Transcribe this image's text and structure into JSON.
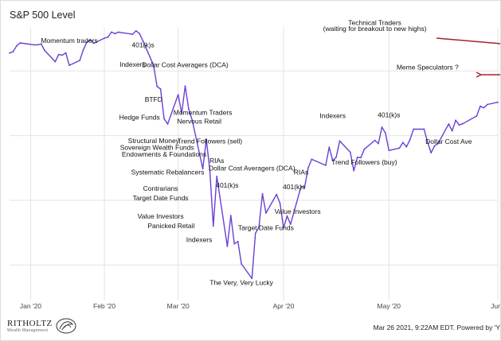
{
  "header": {
    "title": "S&P 500 Level"
  },
  "footer": {
    "logo_text": "RITHOLTZ",
    "logo_sub": "Wealth Management",
    "timestamp": "Mar 26 2021, 9:22AM EDT.  Powered by 'Y"
  },
  "colors": {
    "line": "#6b3fd4",
    "arrow": "#a3222e",
    "grid": "#e3e3e3"
  },
  "chart_data": {
    "type": "line",
    "title": "S&P 500 Level",
    "grid": true,
    "x_start": "2020-01-14",
    "x_end": "2020-06-01",
    "x_ticks": [
      {
        "label": "Jan '20",
        "date": "2020-01-20"
      },
      {
        "label": "Feb '20",
        "date": "2020-02-10"
      },
      {
        "label": "Mar '20",
        "date": "2020-03-02"
      },
      {
        "label": "Apr '20",
        "date": "2020-04-01"
      },
      {
        "label": "May '20",
        "date": "2020-05-01"
      },
      {
        "label": "Jun '",
        "date": "2020-06-01"
      }
    ],
    "ylim": [
      2150,
      3400
    ],
    "series": [
      {
        "values": [
          [
            "2020-01-14",
            3283
          ],
          [
            "2020-01-15",
            3289
          ],
          [
            "2020-01-16",
            3316
          ],
          [
            "2020-01-17",
            3330
          ],
          [
            "2020-01-21",
            3321
          ],
          [
            "2020-01-22",
            3321
          ],
          [
            "2020-01-23",
            3325
          ],
          [
            "2020-01-24",
            3295
          ],
          [
            "2020-01-27",
            3243
          ],
          [
            "2020-01-28",
            3276
          ],
          [
            "2020-01-29",
            3273
          ],
          [
            "2020-01-30",
            3284
          ],
          [
            "2020-01-31",
            3226
          ],
          [
            "2020-02-03",
            3249
          ],
          [
            "2020-02-04",
            3298
          ],
          [
            "2020-02-05",
            3334
          ],
          [
            "2020-02-06",
            3345
          ],
          [
            "2020-02-07",
            3328
          ],
          [
            "2020-02-10",
            3352
          ],
          [
            "2020-02-11",
            3357
          ],
          [
            "2020-02-12",
            3380
          ],
          [
            "2020-02-13",
            3373
          ],
          [
            "2020-02-14",
            3380
          ],
          [
            "2020-02-18",
            3370
          ],
          [
            "2020-02-19",
            3386
          ],
          [
            "2020-02-20",
            3373
          ],
          [
            "2020-02-21",
            3338
          ],
          [
            "2020-02-24",
            3226
          ],
          [
            "2020-02-25",
            3128
          ],
          [
            "2020-02-26",
            3116
          ],
          [
            "2020-02-27",
            2979
          ],
          [
            "2020-02-28",
            2954
          ],
          [
            "2020-03-02",
            3090
          ],
          [
            "2020-03-03",
            3003
          ],
          [
            "2020-03-04",
            3130
          ],
          [
            "2020-03-05",
            3023
          ],
          [
            "2020-03-06",
            2972
          ],
          [
            "2020-03-09",
            2746
          ],
          [
            "2020-03-10",
            2882
          ],
          [
            "2020-03-11",
            2741
          ],
          [
            "2020-03-12",
            2480
          ],
          [
            "2020-03-13",
            2711
          ],
          [
            "2020-03-16",
            2386
          ],
          [
            "2020-03-17",
            2529
          ],
          [
            "2020-03-18",
            2398
          ],
          [
            "2020-03-19",
            2409
          ],
          [
            "2020-03-20",
            2305
          ],
          [
            "2020-03-23",
            2237
          ],
          [
            "2020-03-24",
            2447
          ],
          [
            "2020-03-25",
            2475
          ],
          [
            "2020-03-26",
            2630
          ],
          [
            "2020-03-27",
            2541
          ],
          [
            "2020-03-30",
            2627
          ],
          [
            "2020-03-31",
            2585
          ],
          [
            "2020-04-01",
            2471
          ],
          [
            "2020-04-02",
            2527
          ],
          [
            "2020-04-03",
            2489
          ],
          [
            "2020-04-06",
            2664
          ],
          [
            "2020-04-07",
            2660
          ],
          [
            "2020-04-08",
            2750
          ],
          [
            "2020-04-09",
            2790
          ],
          [
            "2020-04-13",
            2762
          ],
          [
            "2020-04-14",
            2846
          ],
          [
            "2020-04-15",
            2784
          ],
          [
            "2020-04-16",
            2800
          ],
          [
            "2020-04-17",
            2875
          ],
          [
            "2020-04-20",
            2823
          ],
          [
            "2020-04-21",
            2737
          ],
          [
            "2020-04-22",
            2799
          ],
          [
            "2020-04-23",
            2798
          ],
          [
            "2020-04-24",
            2837
          ],
          [
            "2020-04-27",
            2878
          ],
          [
            "2020-04-28",
            2863
          ],
          [
            "2020-04-29",
            2939
          ],
          [
            "2020-04-30",
            2912
          ],
          [
            "2020-05-01",
            2831
          ],
          [
            "2020-05-04",
            2842
          ],
          [
            "2020-05-05",
            2868
          ],
          [
            "2020-05-06",
            2848
          ],
          [
            "2020-05-07",
            2881
          ],
          [
            "2020-05-08",
            2930
          ],
          [
            "2020-05-11",
            2930
          ],
          [
            "2020-05-12",
            2870
          ],
          [
            "2020-05-13",
            2820
          ],
          [
            "2020-05-14",
            2852
          ],
          [
            "2020-05-15",
            2863
          ],
          [
            "2020-05-18",
            2954
          ],
          [
            "2020-05-19",
            2922
          ],
          [
            "2020-05-20",
            2971
          ],
          [
            "2020-05-21",
            2949
          ],
          [
            "2020-05-22",
            2955
          ],
          [
            "2020-05-26",
            2991
          ],
          [
            "2020-05-27",
            3036
          ],
          [
            "2020-05-28",
            3029
          ],
          [
            "2020-05-29",
            3044
          ],
          [
            "2020-06-01",
            3055
          ]
        ]
      }
    ],
    "annotations": [
      {
        "text": "Momentum traders",
        "date": "2020-01-31",
        "value": 3330
      },
      {
        "text": "401(k)s",
        "date": "2020-02-21",
        "value": 3310
      },
      {
        "text": "Indexers",
        "date": "2020-02-18",
        "value": 3220
      },
      {
        "text": "Dollar Cost Averagers (DCA)",
        "date": "2020-03-04",
        "value": 3218
      },
      {
        "text": "BTFD",
        "date": "2020-02-24",
        "value": 3057
      },
      {
        "text": "Momentum Traders",
        "date": "2020-03-09",
        "value": 2997
      },
      {
        "text": "Hedge Funds",
        "date": "2020-02-20",
        "value": 2974
      },
      {
        "text": "Nervous Retail",
        "date": "2020-03-08",
        "value": 2956
      },
      {
        "text": "Trend Followers (sell)",
        "date": "2020-03-11",
        "value": 2863
      },
      {
        "text": "Structural Money",
        "date": "2020-02-24",
        "value": 2866
      },
      {
        "text": "Sovereign Wealth Funds",
        "date": "2020-02-25",
        "value": 2834
      },
      {
        "text": "Endowments & Foundations",
        "date": "2020-02-27",
        "value": 2802
      },
      {
        "text": "RIAs",
        "date": "2020-03-13",
        "value": 2774
      },
      {
        "text": "Dollar Cost Averagers (DCA)",
        "date": "2020-03-23",
        "value": 2738
      },
      {
        "text": "Systematic Rebalancers",
        "date": "2020-02-28",
        "value": 2719
      },
      {
        "text": "RIAs",
        "date": "2020-04-06",
        "value": 2720
      },
      {
        "text": "401(k)s",
        "date": "2020-03-16",
        "value": 2658
      },
      {
        "text": "401(k)s",
        "date": "2020-04-04",
        "value": 2652
      },
      {
        "text": "Contrarians",
        "date": "2020-02-26",
        "value": 2644
      },
      {
        "text": "Target Date Funds",
        "date": "2020-02-26",
        "value": 2600
      },
      {
        "text": "Value Investors",
        "date": "2020-04-05",
        "value": 2537
      },
      {
        "text": "Value Investors",
        "date": "2020-02-26",
        "value": 2515
      },
      {
        "text": "Panicked Retail",
        "date": "2020-02-29",
        "value": 2471
      },
      {
        "text": "Target Date Funds",
        "date": "2020-03-27",
        "value": 2461
      },
      {
        "text": "Indexers",
        "date": "2020-03-08",
        "value": 2407
      },
      {
        "text": "The Very, Very Lucky",
        "date": "2020-03-20",
        "value": 2207
      },
      {
        "text": "Indexers",
        "date": "2020-04-15",
        "value": 2982
      },
      {
        "text": "401(k)s",
        "date": "2020-05-01",
        "value": 2986
      },
      {
        "text": "Trend Followers (buy)",
        "date": "2020-04-24",
        "value": 2765
      },
      {
        "text": "Dollar Cost Ave",
        "date": "2020-05-18",
        "value": 2862
      },
      {
        "text": "Technical Traders",
        "date": "2020-04-27",
        "value": 3412
      },
      {
        "text": "(waiting for breakout to new highs)",
        "date": "2020-04-27",
        "value": 3385
      },
      {
        "text": "Meme Speculators ?",
        "date": "2020-05-12",
        "value": 3207
      }
    ]
  }
}
